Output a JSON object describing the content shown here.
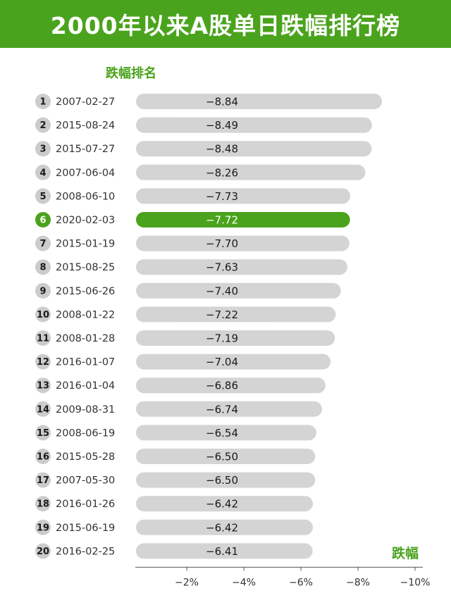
{
  "title": "2000年以来A股单日跌幅排行榜",
  "chart_data": {
    "type": "bar",
    "orientation": "horizontal",
    "y_axis_title": "跌幅排名",
    "x_axis_title": "跌幅",
    "xlim": [
      0,
      -10
    ],
    "x_ticks": [
      "−2%",
      "−4%",
      "−6%",
      "−8%",
      "−10%"
    ],
    "highlight_rank": 6,
    "colors": {
      "bar": "#d4d4d4",
      "highlight": "#4aa31c",
      "rank_circle": "#cccccc"
    },
    "categories": [
      "2007-02-27",
      "2015-08-24",
      "2015-07-27",
      "2007-06-04",
      "2008-06-10",
      "2020-02-03",
      "2015-01-19",
      "2015-08-25",
      "2015-06-26",
      "2008-01-22",
      "2008-01-28",
      "2016-01-07",
      "2016-01-04",
      "2009-08-31",
      "2008-06-19",
      "2015-05-28",
      "2007-05-30",
      "2016-01-26",
      "2015-06-19",
      "2016-02-25"
    ],
    "ranks": [
      "1",
      "2",
      "3",
      "4",
      "5",
      "6",
      "7",
      "8",
      "9",
      "10",
      "11",
      "12",
      "13",
      "14",
      "15",
      "16",
      "17",
      "18",
      "19",
      "20"
    ],
    "values": [
      -8.84,
      -8.49,
      -8.48,
      -8.26,
      -7.73,
      -7.72,
      -7.7,
      -7.63,
      -7.4,
      -7.22,
      -7.19,
      -7.04,
      -6.86,
      -6.74,
      -6.54,
      -6.5,
      -6.5,
      -6.42,
      -6.42,
      -6.41
    ],
    "value_labels": [
      "−8.84",
      "−8.49",
      "−8.48",
      "−8.26",
      "−7.73",
      "−7.72",
      "−7.70",
      "−7.63",
      "−7.40",
      "−7.22",
      "−7.19",
      "−7.04",
      "−6.86",
      "−6.74",
      "−6.54",
      "−6.50",
      "−6.50",
      "−6.42",
      "−6.42",
      "−6.41"
    ]
  }
}
